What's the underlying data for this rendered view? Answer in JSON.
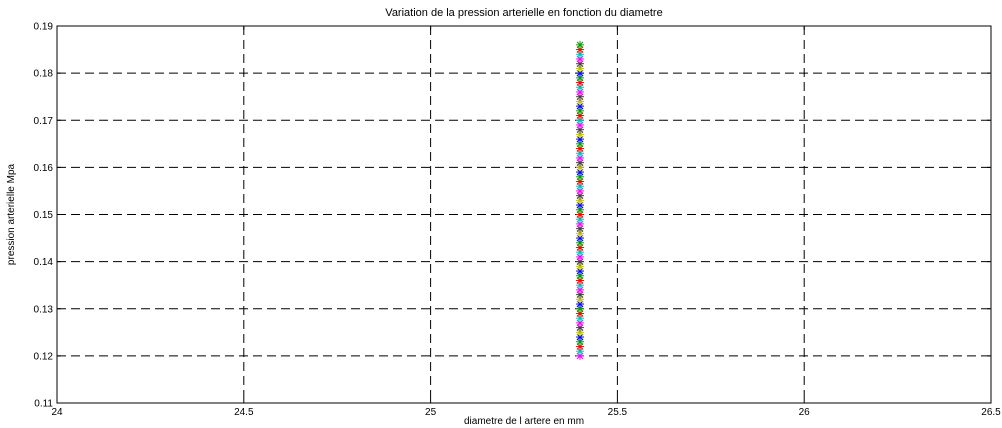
{
  "chart_data": {
    "type": "scatter",
    "title": "Variation de la pression arterielle en fonction du diametre",
    "xlabel": "diametre de l artere en mm",
    "ylabel": "pression arterielle Mpa",
    "xlim": [
      24,
      26.5
    ],
    "ylim": [
      0.11,
      0.19
    ],
    "x_ticks": [
      "24",
      "24.5",
      "25",
      "25.5",
      "26",
      "26.5"
    ],
    "y_ticks": [
      "0.11",
      "0.12",
      "0.13",
      "0.14",
      "0.15",
      "0.16",
      "0.17",
      "0.18",
      "0.19"
    ],
    "grid": true,
    "grid_style": "dashed",
    "marker": "star",
    "x_value": 25.4,
    "y_start": 0.12,
    "y_end": 0.186,
    "point_count": 67,
    "marker_colors": [
      "#ff00ff",
      "#00c0c0",
      "#ff0000",
      "#00a000",
      "#0000ff",
      "#c0c000",
      "#404040"
    ]
  }
}
